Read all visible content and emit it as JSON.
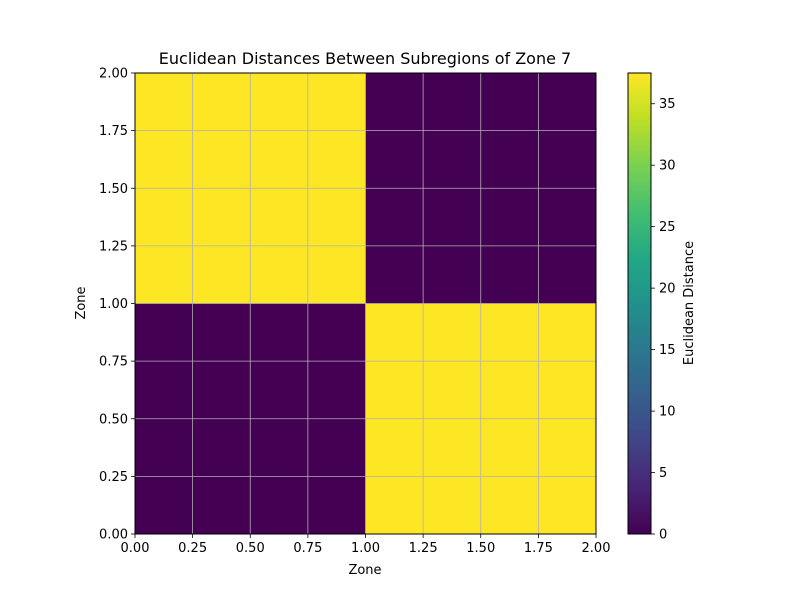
{
  "chart_data": {
    "type": "heatmap",
    "title": "Euclidean Distances Between Subregions of Zone 7",
    "xlabel": "Zone",
    "ylabel": "Zone",
    "xlim": [
      0,
      2
    ],
    "ylim": [
      0,
      2
    ],
    "x_ticks": [
      "0.00",
      "0.25",
      "0.50",
      "0.75",
      "1.00",
      "1.25",
      "1.50",
      "1.75",
      "2.00"
    ],
    "y_ticks": [
      "0.00",
      "0.25",
      "0.50",
      "0.75",
      "1.00",
      "1.25",
      "1.50",
      "1.75",
      "2.00"
    ],
    "x_edges": [
      0,
      1,
      2
    ],
    "y_edges": [
      0,
      1,
      2
    ],
    "matrix": [
      [
        0,
        37.5
      ],
      [
        37.5,
        0
      ]
    ],
    "colorbar": {
      "label": "Euclidean Distance",
      "vmin": 0,
      "vmax": 37.5,
      "ticks": [
        0,
        5,
        10,
        15,
        20,
        25,
        30,
        35
      ],
      "colormap": "viridis"
    },
    "grid": true
  }
}
